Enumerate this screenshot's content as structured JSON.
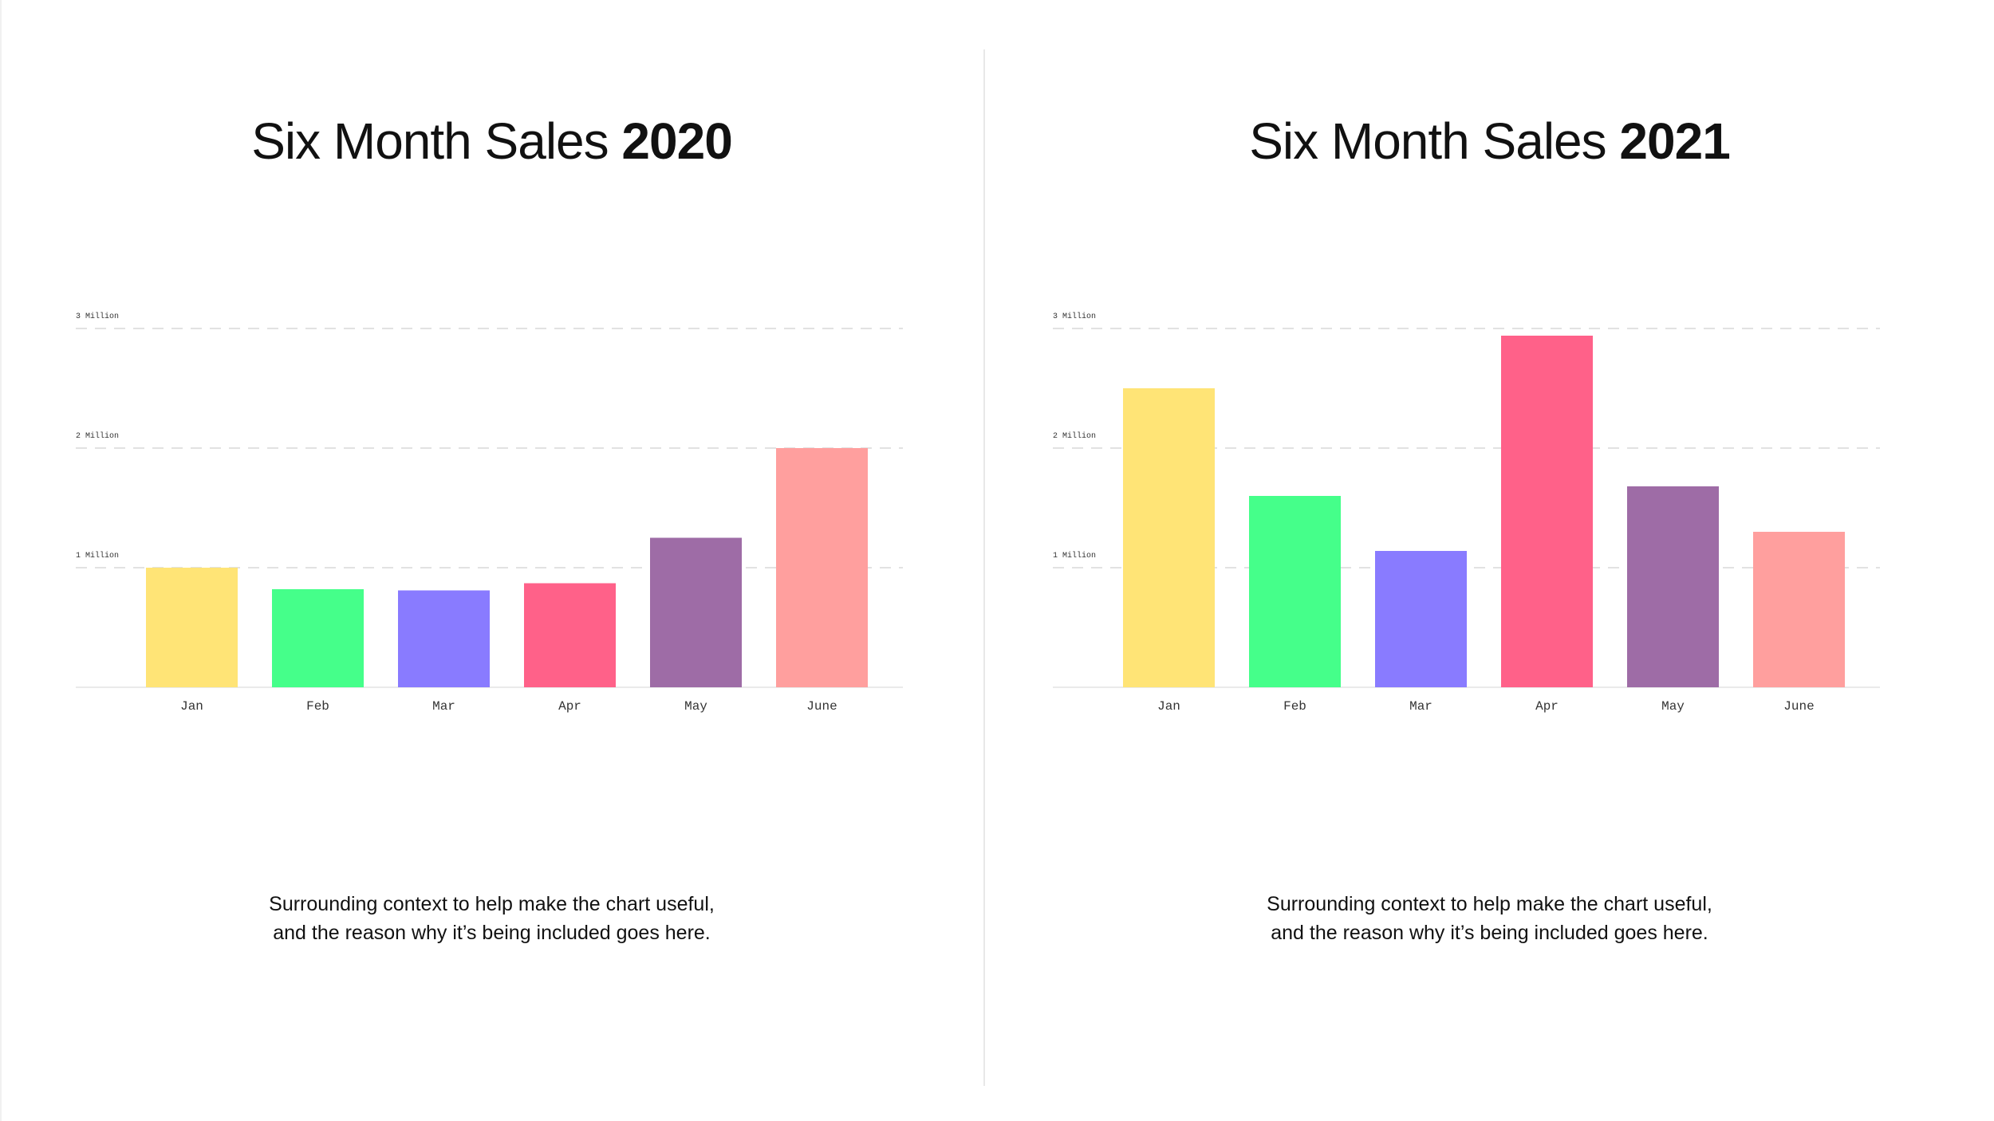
{
  "chart_data": [
    {
      "type": "bar",
      "title": "Six Month Sales",
      "title_year": "2020",
      "categories": [
        "Jan",
        "Feb",
        "Mar",
        "Apr",
        "May",
        "June"
      ],
      "values": [
        1.0,
        0.82,
        0.81,
        0.87,
        1.25,
        2.0
      ],
      "ylim": [
        0,
        3
      ],
      "yticks": [
        {
          "value": 1,
          "label": "1 Million"
        },
        {
          "value": 2,
          "label": "2 Million"
        },
        {
          "value": 3,
          "label": "3 Million"
        }
      ],
      "xlabel": "",
      "ylabel": "",
      "grid": true,
      "colors": [
        "#FFE476",
        "#45FF8A",
        "#897BFF",
        "#FF6189",
        "#9E6CA6",
        "#FF9F9E"
      ],
      "caption": [
        "Surrounding context to help make the chart useful,",
        "and the reason why it’s being included goes here."
      ]
    },
    {
      "type": "bar",
      "title": "Six Month Sales",
      "title_year": "2021",
      "categories": [
        "Jan",
        "Feb",
        "Mar",
        "Apr",
        "May",
        "June"
      ],
      "values": [
        2.5,
        1.6,
        1.14,
        2.94,
        1.68,
        1.3
      ],
      "ylim": [
        0,
        3
      ],
      "yticks": [
        {
          "value": 1,
          "label": "1 Million"
        },
        {
          "value": 2,
          "label": "2 Million"
        },
        {
          "value": 3,
          "label": "3 Million"
        }
      ],
      "xlabel": "",
      "ylabel": "",
      "grid": true,
      "colors": [
        "#FFE476",
        "#45FF8A",
        "#897BFF",
        "#FF6189",
        "#9E6CA6",
        "#FF9F9E"
      ],
      "caption": [
        "Surrounding context to help make the chart useful,",
        "and the reason why it’s being included goes here."
      ]
    }
  ]
}
